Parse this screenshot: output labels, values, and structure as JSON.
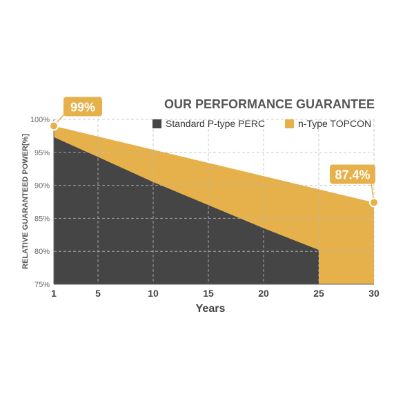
{
  "chart_data": {
    "type": "area",
    "title": "OUR PERFORMANCE GUARANTEE",
    "xlabel": "Years",
    "ylabel": "RELATIVE GUARANTEED POWER[%]",
    "xlim": [
      1,
      30
    ],
    "ylim": [
      75,
      100
    ],
    "x_ticks": [
      1,
      5,
      10,
      15,
      20,
      25,
      30
    ],
    "y_ticks": [
      75,
      80,
      85,
      90,
      95,
      100
    ],
    "y_tick_labels": [
      "75%",
      "80%",
      "85%",
      "90%",
      "95%",
      "100%"
    ],
    "grid": true,
    "legend_position": "top-right",
    "series": [
      {
        "name": "Standard P-type PERC",
        "color": "#454545",
        "x": [
          1,
          5,
          10,
          15,
          20,
          25
        ],
        "y": [
          97.3,
          94.3,
          90.5,
          87.0,
          83.5,
          80.2
        ]
      },
      {
        "name": "n-Type TOPCON",
        "color": "#E6B04A",
        "x": [
          1,
          30
        ],
        "y": [
          99.0,
          87.4
        ]
      }
    ],
    "annotations": [
      {
        "text": "99%",
        "x": 1,
        "y": 99.0
      },
      {
        "text": "87.4%",
        "x": 30,
        "y": 87.4
      }
    ]
  }
}
